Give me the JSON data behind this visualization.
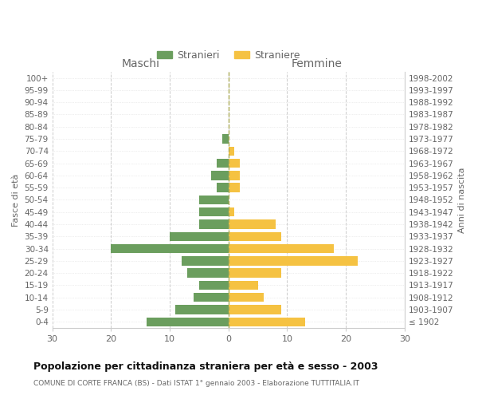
{
  "age_groups": [
    "100+",
    "95-99",
    "90-94",
    "85-89",
    "80-84",
    "75-79",
    "70-74",
    "65-69",
    "60-64",
    "55-59",
    "50-54",
    "45-49",
    "40-44",
    "35-39",
    "30-34",
    "25-29",
    "20-24",
    "15-19",
    "10-14",
    "5-9",
    "0-4"
  ],
  "birth_years": [
    "≤ 1902",
    "1903-1907",
    "1908-1912",
    "1913-1917",
    "1918-1922",
    "1923-1927",
    "1928-1932",
    "1933-1937",
    "1938-1942",
    "1943-1947",
    "1948-1952",
    "1953-1957",
    "1958-1962",
    "1963-1967",
    "1968-1972",
    "1973-1977",
    "1978-1982",
    "1983-1987",
    "1988-1992",
    "1993-1997",
    "1998-2002"
  ],
  "males": [
    0,
    0,
    0,
    0,
    0,
    1,
    0,
    2,
    3,
    2,
    5,
    5,
    5,
    10,
    20,
    8,
    7,
    5,
    6,
    9,
    14
  ],
  "females": [
    0,
    0,
    0,
    0,
    0,
    0,
    1,
    2,
    2,
    2,
    0,
    1,
    8,
    9,
    18,
    22,
    9,
    5,
    6,
    9,
    13
  ],
  "male_color": "#6b9e5e",
  "female_color": "#f5c242",
  "title": "Popolazione per cittadinanza straniera per età e sesso - 2003",
  "subtitle": "COMUNE DI CORTE FRANCA (BS) - Dati ISTAT 1° gennaio 2003 - Elaborazione TUTTITALIA.IT",
  "left_label": "Maschi",
  "right_label": "Femmine",
  "ylabel_left": "Fasce di età",
  "ylabel_right": "Anni di nascita",
  "legend_male": "Stranieri",
  "legend_female": "Straniere",
  "xlim": 30,
  "bar_height": 0.75,
  "background_color": "#ffffff",
  "grid_color": "#cccccc",
  "grid_color_h": "#dddddd",
  "text_color": "#666666",
  "title_color": "#111111",
  "fontsize_tick": 7.5,
  "fontsize_maschi": 10,
  "fontsize_axlabel": 8,
  "fontsize_legend": 9,
  "fontsize_title": 9,
  "fontsize_subtitle": 6.5,
  "center_line_color": "#aaaa55"
}
